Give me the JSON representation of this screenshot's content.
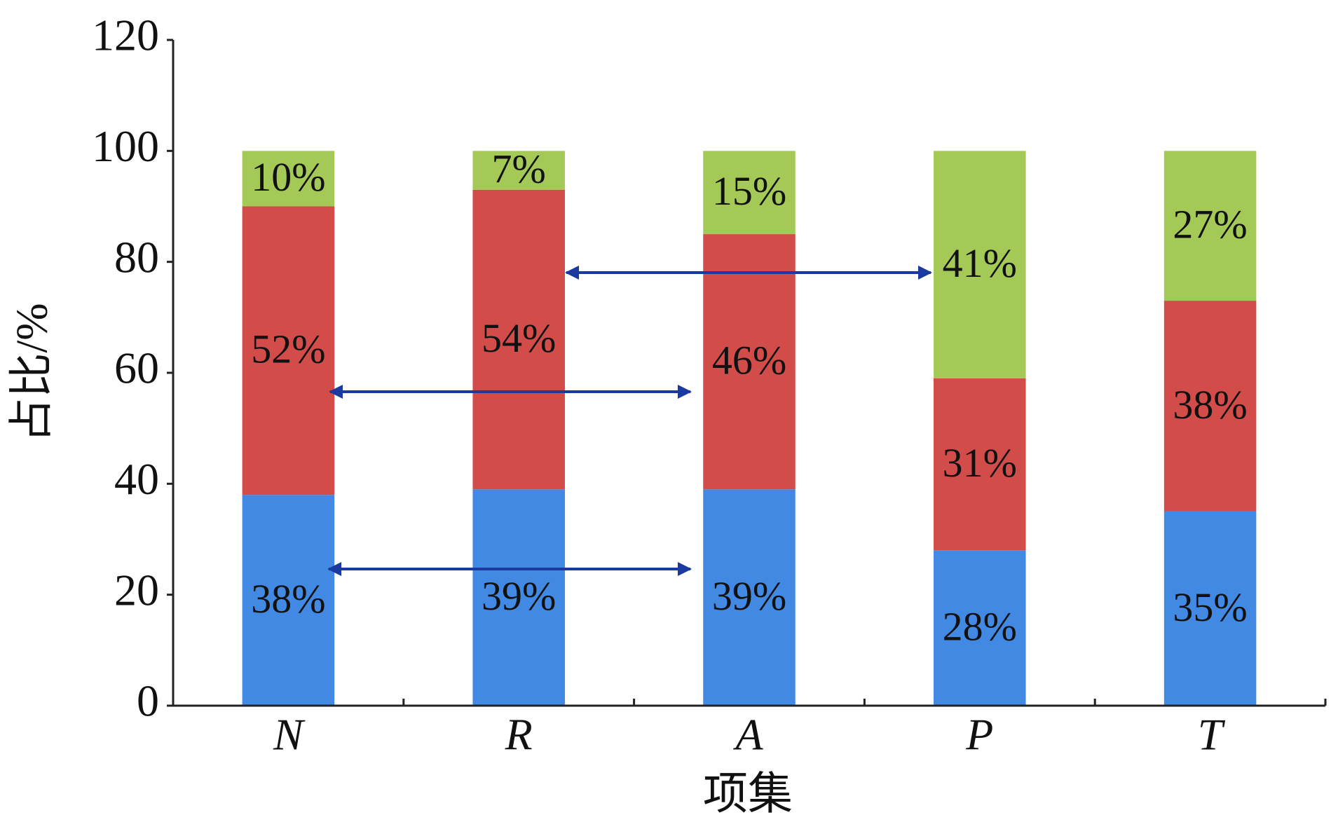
{
  "chart_data": {
    "type": "stacked_bar",
    "x_label": "项集",
    "y_label": "占比/%",
    "categories": [
      "N",
      "R",
      "A",
      "P",
      "T"
    ],
    "series": [
      {
        "color": "#4189e3",
        "values": [
          38,
          39,
          39,
          28,
          35
        ],
        "value_labels": [
          "38%",
          "39%",
          "39%",
          "28%",
          "35%"
        ]
      },
      {
        "color": "#d24c4a",
        "values": [
          52,
          54,
          46,
          31,
          38
        ],
        "value_labels": [
          "52%",
          "54%",
          "46%",
          "31%",
          "38%"
        ]
      },
      {
        "color": "#a5c957",
        "values": [
          10,
          7,
          15,
          41,
          27
        ],
        "value_labels": [
          "10%",
          "7%",
          "15%",
          "41%",
          "27%"
        ]
      }
    ],
    "ylim": [
      0,
      120
    ],
    "yticks": [
      0,
      20,
      40,
      60,
      80,
      100,
      120
    ],
    "grid": false
  }
}
